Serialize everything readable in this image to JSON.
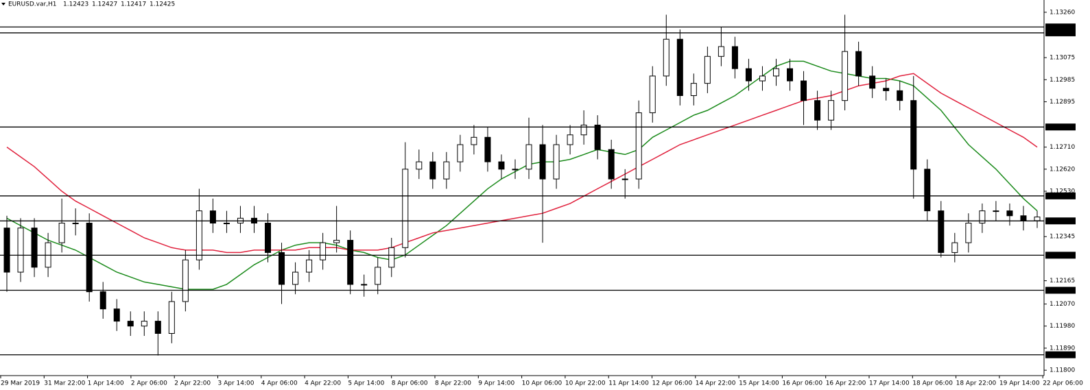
{
  "chart_data": {
    "type": "candlestick",
    "symbol": "EURUSD.var,H1",
    "header_ohlc": [
      1.12423,
      1.12427,
      1.12417,
      1.12425
    ],
    "x_labels": [
      "29 Mar 2019",
      "31 Mar 22:00",
      "1 Apr 14:00",
      "2 Apr 06:00",
      "2 Apr 22:00",
      "3 Apr 14:00",
      "4 Apr 06:00",
      "4 Apr 22:00",
      "5 Apr 14:00",
      "8 Apr 06:00",
      "8 Apr 22:00",
      "9 Apr 14:00",
      "10 Apr 06:00",
      "10 Apr 22:00",
      "11 Apr 14:00",
      "12 Apr 06:00",
      "14 Apr 22:00",
      "15 Apr 14:00",
      "16 Apr 06:00",
      "16 Apr 22:00",
      "17 Apr 14:00",
      "18 Apr 06:00",
      "18 Apr 22:00",
      "19 Apr 14:00",
      "22 Apr 06:00"
    ],
    "ylim": [
      1.11778,
      1.1331
    ],
    "yticks": [
      {
        "value": 1.1326,
        "label": "1.13260"
      },
      1.13075,
      1.12985,
      1.12895,
      {
        "value": 1.1271,
        "label": "1.12710"
      },
      {
        "value": 1.1262,
        "label": "1.12620"
      },
      {
        "value": 1.1253,
        "label": "1.12530"
      },
      1.12345,
      1.12165,
      {
        "value": 1.1207,
        "label": "1.12070"
      },
      {
        "value": 1.1198,
        "label": "1.11980"
      },
      {
        "value": 1.1189,
        "label": "1.11890"
      },
      {
        "value": 1.118,
        "label": "1.11800"
      }
    ],
    "levels": [
      {
        "value": 1.132,
        "label": "1.13200"
      },
      1.13176,
      1.12792,
      1.12511,
      1.12409,
      1.12269,
      1.12126,
      1.11863
    ],
    "candles": {
      "open": [
        1.1238,
        1.122,
        1.1238,
        1.1222,
        1.1232,
        1.124,
        1.124,
        1.1212,
        1.1205,
        1.12,
        1.1198,
        1.12,
        1.1195,
        1.1208,
        1.1225,
        1.1245,
        1.124,
        1.124,
        1.1242,
        1.124,
        1.1228,
        1.1215,
        1.122,
        1.1225,
        1.1232,
        1.1233,
        1.1215,
        1.1215,
        1.1222,
        1.123,
        1.1262,
        1.1265,
        1.1258,
        1.1265,
        1.1272,
        1.1275,
        1.1265,
        1.1262,
        1.1262,
        1.1272,
        1.1258,
        1.1272,
        1.1276,
        1.128,
        1.127,
        1.1258,
        1.1258,
        1.1285,
        1.13,
        1.1315,
        1.1292,
        1.1297,
        1.1308,
        1.1312,
        1.1303,
        1.1298,
        1.13,
        1.1303,
        1.1298,
        1.129,
        1.1282,
        1.129,
        1.131,
        1.13,
        1.1295,
        1.1294,
        1.129,
        1.1262,
        1.1245,
        1.1228,
        1.1232,
        1.124,
        1.1245,
        1.1245,
        1.1243,
        1.1241
      ],
      "high": [
        1.1243,
        1.1242,
        1.1242,
        1.1236,
        1.125,
        1.1246,
        1.1244,
        1.1216,
        1.1209,
        1.1204,
        1.1204,
        1.1204,
        1.1212,
        1.1229,
        1.1254,
        1.125,
        1.1245,
        1.1247,
        1.1247,
        1.1244,
        1.1232,
        1.1224,
        1.1229,
        1.1236,
        1.1247,
        1.1237,
        1.1219,
        1.1226,
        1.1234,
        1.1273,
        1.127,
        1.1269,
        1.1269,
        1.1276,
        1.128,
        1.1279,
        1.1268,
        1.1266,
        1.1283,
        1.128,
        1.1276,
        1.128,
        1.1286,
        1.1284,
        1.1274,
        1.1262,
        1.129,
        1.1304,
        1.1325,
        1.1319,
        1.1301,
        1.1312,
        1.132,
        1.1316,
        1.1307,
        1.1304,
        1.1307,
        1.1307,
        1.1302,
        1.1294,
        1.1294,
        1.1325,
        1.1314,
        1.1304,
        1.1299,
        1.1298,
        1.13,
        1.1266,
        1.1249,
        1.1236,
        1.1244,
        1.1248,
        1.1249,
        1.1248,
        1.1247,
        1.1245
      ],
      "low": [
        1.1212,
        1.1216,
        1.1218,
        1.1218,
        1.1228,
        1.1235,
        1.1208,
        1.1201,
        1.1196,
        1.1194,
        1.1194,
        1.1186,
        1.1191,
        1.1204,
        1.1221,
        1.1236,
        1.1236,
        1.1236,
        1.1236,
        1.1224,
        1.1207,
        1.1211,
        1.1216,
        1.1221,
        1.1228,
        1.1211,
        1.121,
        1.1211,
        1.1218,
        1.1226,
        1.1258,
        1.1254,
        1.1254,
        1.1261,
        1.1268,
        1.1261,
        1.1258,
        1.1258,
        1.1258,
        1.1232,
        1.1254,
        1.1268,
        1.1272,
        1.1266,
        1.1254,
        1.125,
        1.1254,
        1.1281,
        1.1296,
        1.1288,
        1.1288,
        1.1293,
        1.1304,
        1.1299,
        1.1294,
        1.1294,
        1.1296,
        1.1294,
        1.128,
        1.1278,
        1.1278,
        1.1286,
        1.1296,
        1.1291,
        1.129,
        1.1286,
        1.125,
        1.1241,
        1.1226,
        1.1224,
        1.1228,
        1.1236,
        1.1241,
        1.1239,
        1.1237,
        1.1238
      ],
      "close": [
        1.122,
        1.1238,
        1.1222,
        1.1232,
        1.124,
        1.124,
        1.1212,
        1.1205,
        1.12,
        1.1198,
        1.12,
        1.1195,
        1.1208,
        1.1225,
        1.1245,
        1.124,
        1.124,
        1.1242,
        1.124,
        1.1228,
        1.1215,
        1.122,
        1.1225,
        1.1232,
        1.1233,
        1.1215,
        1.1215,
        1.1222,
        1.123,
        1.1262,
        1.1265,
        1.1258,
        1.1265,
        1.1272,
        1.1275,
        1.1265,
        1.1262,
        1.1262,
        1.1272,
        1.1258,
        1.1272,
        1.1276,
        1.128,
        1.127,
        1.1258,
        1.1258,
        1.1285,
        1.13,
        1.1315,
        1.1292,
        1.1297,
        1.1308,
        1.1312,
        1.1303,
        1.1298,
        1.13,
        1.1303,
        1.1298,
        1.129,
        1.1282,
        1.129,
        1.131,
        1.13,
        1.1295,
        1.1294,
        1.129,
        1.1262,
        1.1245,
        1.1228,
        1.1232,
        1.124,
        1.1245,
        1.1245,
        1.1243,
        1.1241,
        1.12425
      ]
    },
    "series": [
      {
        "color": "#1a8a1a",
        "values": [
          1.1242,
          1.1239,
          1.1236,
          1.1233,
          1.1231,
          1.1229,
          1.1226,
          1.1223,
          1.122,
          1.1218,
          1.1216,
          1.1215,
          1.1214,
          1.1213,
          1.1213,
          1.1213,
          1.1215,
          1.1219,
          1.1223,
          1.1226,
          1.1229,
          1.1231,
          1.1232,
          1.1232,
          1.1231,
          1.1229,
          1.1228,
          1.1226,
          1.1225,
          1.1227,
          1.1231,
          1.1235,
          1.1239,
          1.1244,
          1.1249,
          1.1254,
          1.1258,
          1.1261,
          1.1264,
          1.1265,
          1.1265,
          1.1266,
          1.1268,
          1.127,
          1.1269,
          1.1268,
          1.127,
          1.1275,
          1.1278,
          1.1281,
          1.1284,
          1.1286,
          1.1289,
          1.1292,
          1.1296,
          1.13,
          1.1304,
          1.1306,
          1.1306,
          1.1304,
          1.1302,
          1.1301,
          1.13,
          1.1299,
          1.1299,
          1.1298,
          1.1296,
          1.1291,
          1.1286,
          1.1279,
          1.1272,
          1.1267,
          1.1262,
          1.1256,
          1.125,
          1.1245
        ]
      },
      {
        "color": "#e0203c",
        "values": [
          1.1271,
          1.1267,
          1.1263,
          1.1258,
          1.1253,
          1.1249,
          1.1246,
          1.1243,
          1.124,
          1.1237,
          1.1234,
          1.1232,
          1.123,
          1.1229,
          1.1229,
          1.1229,
          1.1228,
          1.1228,
          1.1229,
          1.1229,
          1.1229,
          1.1229,
          1.123,
          1.123,
          1.123,
          1.1229,
          1.1229,
          1.1229,
          1.123,
          1.1232,
          1.1234,
          1.1236,
          1.1237,
          1.1238,
          1.1239,
          1.124,
          1.1241,
          1.1242,
          1.1243,
          1.1244,
          1.1246,
          1.1248,
          1.1251,
          1.1254,
          1.1257,
          1.126,
          1.1263,
          1.1266,
          1.1269,
          1.1272,
          1.1274,
          1.1276,
          1.1278,
          1.128,
          1.1282,
          1.1284,
          1.1286,
          1.1288,
          1.129,
          1.1291,
          1.1292,
          1.1294,
          1.1296,
          1.1297,
          1.1298,
          1.13,
          1.1301,
          1.1297,
          1.1293,
          1.129,
          1.1287,
          1.1284,
          1.1281,
          1.1278,
          1.1275,
          1.1271
        ]
      }
    ],
    "up_color": "#ffffff",
    "down_color": "#000000"
  }
}
